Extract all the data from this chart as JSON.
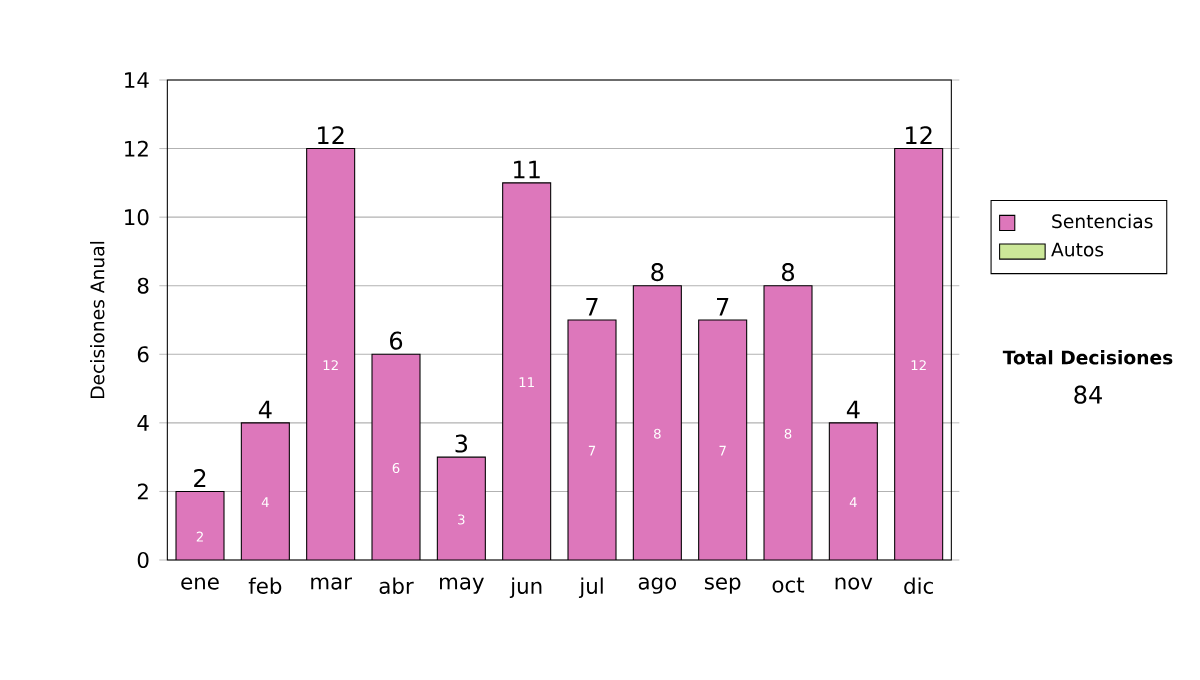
{
  "chart_data": {
    "type": "bar",
    "stacked": true,
    "ylabel": "Decisiones Anual",
    "categories": [
      "ene",
      "feb",
      "mar",
      "abr",
      "may",
      "jun",
      "jul",
      "ago",
      "sep",
      "oct",
      "nov",
      "dic"
    ],
    "series": [
      {
        "name": "Sentencias",
        "color": "#dd77bb",
        "values": [
          2,
          4,
          12,
          6,
          3,
          11,
          7,
          8,
          7,
          8,
          4,
          12
        ]
      },
      {
        "name": "Autos",
        "color": "#cce899",
        "values": [
          null,
          null,
          null,
          null,
          null,
          null,
          null,
          null,
          null,
          null,
          null,
          null
        ]
      }
    ],
    "totals": [
      "2",
      "4",
      "12",
      "6",
      "3",
      "11",
      "7",
      "8",
      "7",
      "8",
      "4",
      "12"
    ],
    "data_labels": true,
    "ylim": [
      0,
      14
    ],
    "yticks": [
      0,
      2,
      4,
      6,
      8,
      10,
      12,
      14
    ],
    "grid": "y",
    "legend": "right",
    "annotations": [
      "Total Decisiones",
      "84"
    ]
  }
}
